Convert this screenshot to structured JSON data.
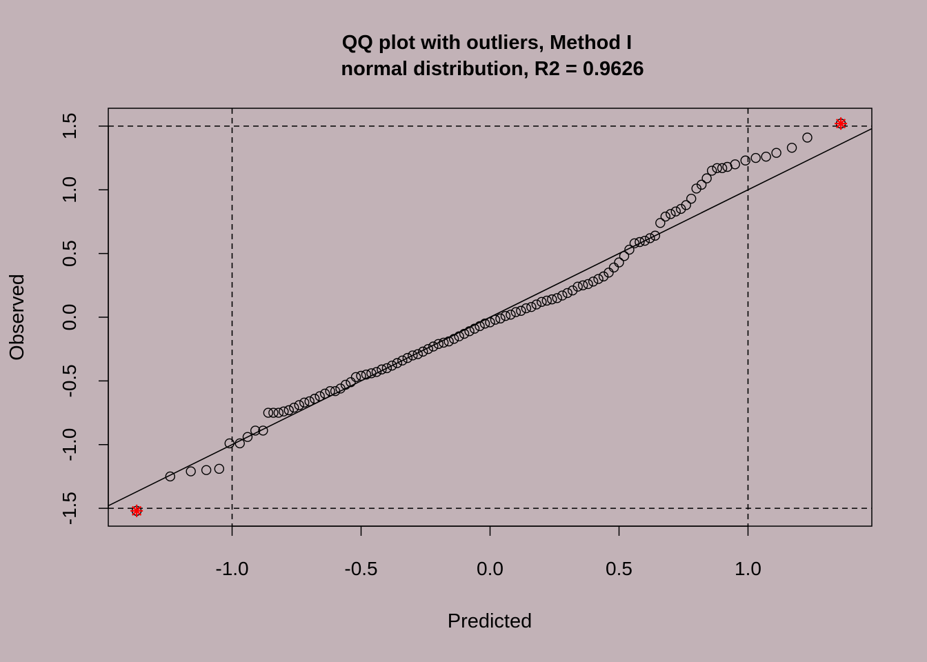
{
  "chart_data": {
    "type": "scatter",
    "title": "QQ plot with outliers, Method I",
    "subtitle": "normal distribution, R2 = 0.9626",
    "xlabel": "Predicted",
    "ylabel": "Observed",
    "xlim": [
      -1.48,
      1.48
    ],
    "ylim": [
      -1.64,
      1.64
    ],
    "x_ticks": [
      -1.0,
      -0.5,
      0.0,
      0.5,
      1.0
    ],
    "x_tick_labels": [
      "-1.0",
      "-0.5",
      "0.0",
      "0.5",
      "1.0"
    ],
    "y_ticks": [
      -1.5,
      -1.0,
      -0.5,
      0.0,
      0.5,
      1.0,
      1.5
    ],
    "y_tick_labels": [
      "-1.5",
      "-1.0",
      "-0.5",
      "0.0",
      "0.5",
      "1.0",
      "1.5"
    ],
    "reference_line": {
      "type": "y=x"
    },
    "threshold_lines": {
      "x": [
        -1.0,
        1.0
      ],
      "y": [
        -1.5,
        1.5
      ]
    },
    "grid": false,
    "colors": {
      "background": "#C2B2B7",
      "points": "#000000",
      "outliers": "#FF0000"
    },
    "points": [
      [
        -1.24,
        -1.25
      ],
      [
        -1.16,
        -1.21
      ],
      [
        -1.1,
        -1.2
      ],
      [
        -1.05,
        -1.19
      ],
      [
        -1.01,
        -0.99
      ],
      [
        -0.97,
        -0.99
      ],
      [
        -0.94,
        -0.94
      ],
      [
        -0.91,
        -0.89
      ],
      [
        -0.88,
        -0.89
      ],
      [
        -0.86,
        -0.75
      ],
      [
        -0.84,
        -0.75
      ],
      [
        -0.82,
        -0.75
      ],
      [
        -0.8,
        -0.74
      ],
      [
        -0.78,
        -0.73
      ],
      [
        -0.76,
        -0.71
      ],
      [
        -0.74,
        -0.69
      ],
      [
        -0.72,
        -0.67
      ],
      [
        -0.7,
        -0.66
      ],
      [
        -0.68,
        -0.64
      ],
      [
        -0.66,
        -0.62
      ],
      [
        -0.64,
        -0.6
      ],
      [
        -0.62,
        -0.58
      ],
      [
        -0.6,
        -0.58
      ],
      [
        -0.58,
        -0.56
      ],
      [
        -0.56,
        -0.53
      ],
      [
        -0.54,
        -0.51
      ],
      [
        -0.52,
        -0.47
      ],
      [
        -0.5,
        -0.46
      ],
      [
        -0.48,
        -0.45
      ],
      [
        -0.46,
        -0.44
      ],
      [
        -0.44,
        -0.43
      ],
      [
        -0.42,
        -0.41
      ],
      [
        -0.4,
        -0.4
      ],
      [
        -0.38,
        -0.38
      ],
      [
        -0.36,
        -0.36
      ],
      [
        -0.34,
        -0.34
      ],
      [
        -0.32,
        -0.32
      ],
      [
        -0.3,
        -0.3
      ],
      [
        -0.28,
        -0.29
      ],
      [
        -0.26,
        -0.27
      ],
      [
        -0.24,
        -0.25
      ],
      [
        -0.22,
        -0.23
      ],
      [
        -0.2,
        -0.21
      ],
      [
        -0.18,
        -0.2
      ],
      [
        -0.16,
        -0.19
      ],
      [
        -0.14,
        -0.17
      ],
      [
        -0.12,
        -0.15
      ],
      [
        -0.1,
        -0.13
      ],
      [
        -0.08,
        -0.11
      ],
      [
        -0.06,
        -0.09
      ],
      [
        -0.04,
        -0.07
      ],
      [
        -0.02,
        -0.05
      ],
      [
        0.0,
        -0.04
      ],
      [
        0.02,
        -0.02
      ],
      [
        0.04,
        -0.01
      ],
      [
        0.06,
        0.01
      ],
      [
        0.08,
        0.02
      ],
      [
        0.1,
        0.04
      ],
      [
        0.12,
        0.05
      ],
      [
        0.14,
        0.07
      ],
      [
        0.16,
        0.08
      ],
      [
        0.18,
        0.1
      ],
      [
        0.2,
        0.12
      ],
      [
        0.22,
        0.13
      ],
      [
        0.24,
        0.14
      ],
      [
        0.26,
        0.15
      ],
      [
        0.28,
        0.17
      ],
      [
        0.3,
        0.19
      ],
      [
        0.32,
        0.21
      ],
      [
        0.34,
        0.24
      ],
      [
        0.36,
        0.25
      ],
      [
        0.38,
        0.26
      ],
      [
        0.4,
        0.28
      ],
      [
        0.42,
        0.3
      ],
      [
        0.44,
        0.32
      ],
      [
        0.46,
        0.35
      ],
      [
        0.48,
        0.39
      ],
      [
        0.5,
        0.43
      ],
      [
        0.52,
        0.48
      ],
      [
        0.54,
        0.53
      ],
      [
        0.56,
        0.58
      ],
      [
        0.58,
        0.59
      ],
      [
        0.6,
        0.6
      ],
      [
        0.62,
        0.62
      ],
      [
        0.64,
        0.64
      ],
      [
        0.66,
        0.74
      ],
      [
        0.68,
        0.79
      ],
      [
        0.7,
        0.81
      ],
      [
        0.72,
        0.83
      ],
      [
        0.74,
        0.85
      ],
      [
        0.76,
        0.88
      ],
      [
        0.78,
        0.93
      ],
      [
        0.8,
        1.01
      ],
      [
        0.82,
        1.04
      ],
      [
        0.84,
        1.09
      ],
      [
        0.86,
        1.15
      ],
      [
        0.88,
        1.17
      ],
      [
        0.9,
        1.17
      ],
      [
        0.92,
        1.18
      ],
      [
        0.95,
        1.2
      ],
      [
        0.99,
        1.23
      ],
      [
        1.03,
        1.25
      ],
      [
        1.07,
        1.26
      ],
      [
        1.11,
        1.29
      ],
      [
        1.17,
        1.33
      ],
      [
        1.23,
        1.41
      ]
    ],
    "outliers": [
      [
        -1.37,
        -1.52
      ],
      [
        1.36,
        1.52
      ]
    ]
  }
}
